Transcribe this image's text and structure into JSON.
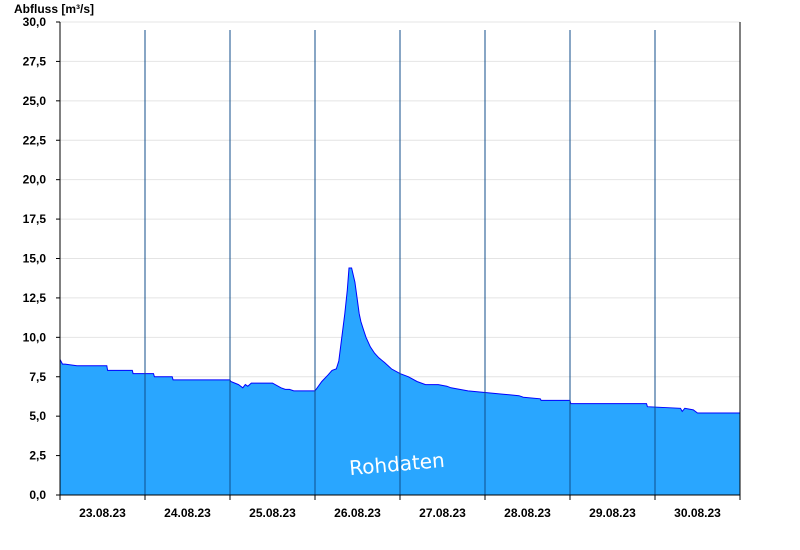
{
  "chart_data": {
    "type": "area",
    "ylabel": "Abfluss [m³/s]",
    "ylim": [
      0,
      30
    ],
    "y_ticks": [
      "0,0",
      "2,5",
      "5,0",
      "7,5",
      "10,0",
      "12,5",
      "15,0",
      "17,5",
      "20,0",
      "22,5",
      "25,0",
      "27,5",
      "30,0"
    ],
    "x_ticks": [
      "23.08.23",
      "24.08.23",
      "25.08.23",
      "26.08.23",
      "27.08.23",
      "28.08.23",
      "29.08.23",
      "30.08.23"
    ],
    "grid": true,
    "watermark": "Rohdaten",
    "colors": {
      "fill": "#29a6ff",
      "line": "#0000ff",
      "day_separator": "#104e8b",
      "grid": "#e4e4e4"
    },
    "series": [
      {
        "x_days": [
          0.0,
          0.03,
          0.06,
          0.2,
          0.55,
          0.56,
          0.85,
          0.86,
          1.1,
          1.11,
          1.32,
          1.33,
          2.0,
          2.01,
          2.1,
          2.15,
          2.18,
          2.21,
          2.25,
          2.5,
          2.6,
          2.65,
          2.7,
          2.75,
          2.9,
          2.95,
          3.0,
          3.08,
          3.15,
          3.2,
          3.25,
          3.28,
          3.35,
          3.38,
          3.4,
          3.43,
          3.47,
          3.5,
          3.52,
          3.54,
          3.57,
          3.6,
          3.65,
          3.7,
          3.75,
          3.82,
          3.9,
          4.0,
          4.1,
          4.2,
          4.3,
          4.45,
          4.55,
          4.6,
          4.8,
          5.0,
          5.2,
          5.4,
          5.45,
          5.65,
          5.66,
          6.0,
          6.01,
          6.9,
          6.91,
          7.3,
          7.32,
          7.35,
          7.45,
          7.5,
          7.55,
          8.0
        ],
        "values": [
          8.6,
          8.3,
          8.3,
          8.2,
          8.2,
          7.9,
          7.9,
          7.7,
          7.7,
          7.5,
          7.5,
          7.3,
          7.3,
          7.2,
          7.0,
          6.8,
          7.0,
          6.9,
          7.1,
          7.1,
          6.8,
          6.7,
          6.7,
          6.6,
          6.6,
          6.6,
          6.6,
          7.2,
          7.6,
          7.9,
          8.0,
          8.5,
          11.5,
          13.0,
          14.4,
          14.4,
          13.5,
          12.3,
          11.5,
          11.0,
          10.5,
          10.0,
          9.4,
          9.0,
          8.7,
          8.4,
          8.0,
          7.7,
          7.5,
          7.2,
          7.0,
          7.0,
          6.9,
          6.8,
          6.6,
          6.5,
          6.4,
          6.3,
          6.2,
          6.1,
          6.0,
          6.0,
          5.8,
          5.8,
          5.6,
          5.5,
          5.3,
          5.5,
          5.4,
          5.2,
          5.2,
          5.2
        ]
      }
    ]
  }
}
